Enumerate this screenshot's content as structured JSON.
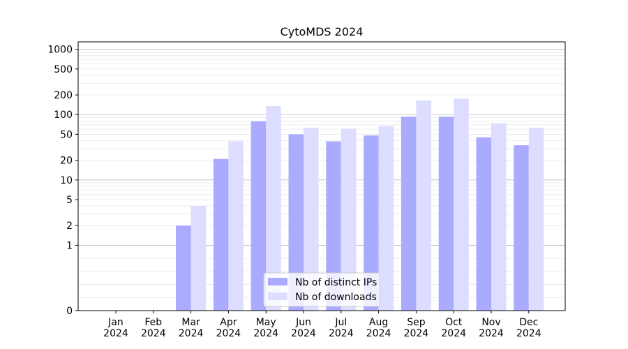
{
  "chart_data": {
    "type": "bar",
    "title": "CytoMDS 2024",
    "xlabel": "",
    "ylabel": "",
    "y_scale": "symlog",
    "ylim": [
      0,
      1300
    ],
    "categories": [
      [
        "Jan",
        "2024"
      ],
      [
        "Feb",
        "2024"
      ],
      [
        "Mar",
        "2024"
      ],
      [
        "Apr",
        "2024"
      ],
      [
        "May",
        "2024"
      ],
      [
        "Jun",
        "2024"
      ],
      [
        "Jul",
        "2024"
      ],
      [
        "Aug",
        "2024"
      ],
      [
        "Sep",
        "2024"
      ],
      [
        "Oct",
        "2024"
      ],
      [
        "Nov",
        "2024"
      ],
      [
        "Dec",
        "2024"
      ]
    ],
    "y_ticks": [
      0,
      1,
      2,
      5,
      10,
      20,
      50,
      100,
      200,
      500,
      1000
    ],
    "y_tick_labels": [
      "0",
      "1",
      "2",
      "5",
      "10",
      "20",
      "50",
      "100",
      "200",
      "500",
      "1000"
    ],
    "series": [
      {
        "name": "Nb of distinct IPs",
        "color": "#aaaaff",
        "values": [
          0,
          0,
          2,
          21,
          79,
          50,
          39,
          48,
          93,
          93,
          45,
          34
        ]
      },
      {
        "name": "Nb of downloads",
        "color": "#ddddff",
        "values": [
          0,
          0,
          4,
          39,
          135,
          63,
          61,
          67,
          165,
          175,
          74,
          63
        ]
      }
    ],
    "legend_position": "lower-center",
    "grid": true
  }
}
